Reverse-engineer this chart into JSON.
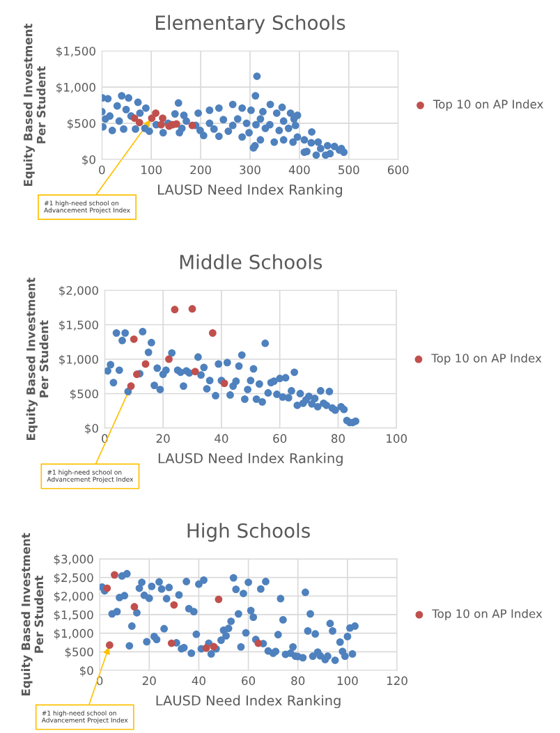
{
  "chart_data": [
    {
      "type": "scatter",
      "title": "Elementary Schools",
      "xlabel": "LAUSD Need Index Ranking",
      "ylabel": "Equity Based Investment Per Student",
      "xlim": [
        0,
        600
      ],
      "xticks": [
        0,
        100,
        200,
        300,
        400,
        500,
        600
      ],
      "ylim": [
        0,
        1500
      ],
      "yticks": [
        {
          "value": 0,
          "label": "$0"
        },
        {
          "value": 500,
          "label": "$500"
        },
        {
          "value": 1000,
          "label": "$1,000"
        },
        {
          "value": 1500,
          "label": "$1,500"
        }
      ],
      "grid": true,
      "legend": "right",
      "marker": "circle",
      "annotations": [
        {
          "text": "#1 high-need school on Advancement Project Index",
          "x": 101,
          "y": 572
        }
      ],
      "series": [
        {
          "color": "#4e81bd",
          "x": [
            314,
            311,
            341,
            365,
            155,
            425,
            310,
            307,
            1,
            12,
            40,
            54,
            73,
            89,
            2,
            21,
            44,
            68,
            0,
            16,
            31,
            49,
            35,
            59,
            7,
            77,
            87,
            148,
            166,
            195,
            218,
            237,
            265,
            284,
            302,
            326,
            354,
            382,
            396,
            368,
            389,
            96,
            124,
            157,
            206,
            237,
            284,
            321,
            349,
            368,
            387,
            110,
            134,
            171,
            190,
            218,
            246,
            265,
            275,
            293,
            312,
            321,
            331,
            340,
            359,
            378,
            392,
            162,
            199,
            227,
            256,
            298,
            396,
            410,
            424,
            438,
            415,
            443,
            457,
            471,
            481,
            490,
            485,
            434,
            462,
            410,
            453
          ],
          "values": [
            1150,
            880,
            760,
            720,
            780,
            380,
            190,
            160,
            850,
            840,
            880,
            850,
            790,
            710,
            450,
            400,
            420,
            420,
            660,
            600,
            740,
            690,
            530,
            600,
            560,
            640,
            430,
            630,
            610,
            640,
            680,
            710,
            760,
            710,
            680,
            660,
            640,
            640,
            610,
            530,
            560,
            390,
            370,
            370,
            330,
            320,
            310,
            270,
            240,
            270,
            240,
            480,
            500,
            530,
            470,
            500,
            550,
            470,
            560,
            500,
            480,
            560,
            430,
            480,
            400,
            430,
            470,
            430,
            400,
            420,
            390,
            370,
            310,
            270,
            230,
            240,
            110,
            150,
            190,
            180,
            130,
            100,
            150,
            60,
            80,
            100,
            60
          ]
        },
        {
          "name": "Top 10 on AP Index",
          "color": "#c0504d",
          "x": [
            66,
            76,
            101,
            109,
            123,
            120,
            136,
            143,
            151,
            183
          ],
          "values": [
            570,
            510,
            570,
            640,
            570,
            480,
            460,
            480,
            490,
            470
          ]
        }
      ]
    },
    {
      "type": "scatter",
      "title": "Middle Schools",
      "xlabel": "LAUSD Need Index Ranking",
      "ylabel": "Equity Based Investment Per Student",
      "xlim": [
        0,
        100
      ],
      "xticks": [
        0,
        20,
        40,
        60,
        80,
        100
      ],
      "ylim": [
        0,
        2000
      ],
      "yticks": [
        {
          "value": 0,
          "label": "$0"
        },
        {
          "value": 500,
          "label": "$500"
        },
        {
          "value": 1000,
          "label": "$1,000"
        },
        {
          "value": 1500,
          "label": "$1,500"
        },
        {
          "value": 2000,
          "label": "$2,000"
        }
      ],
      "grid": true,
      "legend": "right",
      "marker": "circle",
      "annotations": [
        {
          "text": "#1 high-need school on Advancement Project Index",
          "x": 9,
          "y": 610
        }
      ],
      "series": [
        {
          "color": "#4e81bd",
          "x": [
            4,
            7,
            6,
            13,
            16,
            15,
            2,
            1,
            5,
            3,
            12,
            18,
            17,
            19,
            20,
            21,
            23,
            25,
            26,
            27,
            28,
            29,
            32,
            33,
            34,
            36,
            35,
            38,
            39,
            40,
            42,
            43,
            44,
            45,
            46,
            47,
            48,
            49,
            50,
            51,
            52,
            53,
            54,
            55,
            56,
            57,
            58,
            59,
            60,
            61,
            62,
            63,
            64,
            65,
            66,
            67,
            68,
            69,
            70,
            71,
            72,
            73,
            74,
            75,
            76,
            77,
            78,
            79,
            81,
            82,
            83,
            84,
            85,
            86,
            8
          ],
          "values": [
            1380,
            1380,
            1270,
            1400,
            1240,
            1100,
            920,
            830,
            840,
            660,
            790,
            870,
            620,
            560,
            780,
            840,
            1090,
            840,
            810,
            610,
            830,
            800,
            1030,
            770,
            880,
            690,
            570,
            470,
            930,
            690,
            950,
            480,
            610,
            680,
            900,
            1060,
            420,
            560,
            690,
            860,
            420,
            640,
            380,
            1230,
            510,
            660,
            680,
            490,
            720,
            450,
            730,
            440,
            540,
            810,
            330,
            500,
            360,
            410,
            460,
            350,
            430,
            310,
            540,
            360,
            330,
            530,
            290,
            260,
            310,
            270,
            110,
            80,
            80,
            100,
            530
          ]
        },
        {
          "name": "Top 10 on AP Index",
          "color": "#c0504d",
          "x": [
            24,
            30,
            37,
            10,
            14,
            11,
            22,
            31,
            41,
            9
          ],
          "values": [
            1720,
            1730,
            1380,
            1290,
            930,
            780,
            1000,
            820,
            650,
            610
          ]
        }
      ]
    },
    {
      "type": "scatter",
      "title": "High Schools",
      "xlabel": "LAUSD Need Index Ranking",
      "ylabel": "Equity Based Investment Per Student",
      "xlim": [
        0,
        120
      ],
      "xticks": [
        0,
        20,
        40,
        60,
        80,
        100,
        120
      ],
      "ylim": [
        0,
        3000
      ],
      "yticks": [
        {
          "value": 0,
          "label": "$0"
        },
        {
          "value": 500,
          "label": "$500"
        },
        {
          "value": 1000,
          "label": "$1,000"
        },
        {
          "value": 1500,
          "label": "$1,500"
        },
        {
          "value": 2000,
          "label": "$2,000"
        },
        {
          "value": 2500,
          "label": "$2,500"
        },
        {
          "value": 3000,
          "label": "$3,000"
        }
      ],
      "grid": true,
      "legend": "right",
      "marker": "circle",
      "annotations": [
        {
          "text": "#1 high-need school on Advancement Project Index",
          "x": 4,
          "y": 680
        }
      ],
      "series": [
        {
          "color": "#4e81bd",
          "x": [
            1,
            2,
            5,
            7,
            8,
            10,
            9,
            11,
            12,
            13,
            15,
            16,
            17,
            18,
            19,
            20,
            21,
            22,
            23,
            24,
            25,
            26,
            27,
            28,
            31,
            32,
            33,
            34,
            35,
            36,
            37,
            38,
            39,
            41,
            40,
            42,
            44,
            45,
            47,
            49,
            50,
            51,
            52,
            53,
            54,
            55,
            56,
            57,
            58,
            59,
            60,
            61,
            62,
            63,
            65,
            66,
            67,
            68,
            70,
            71,
            72,
            73,
            74,
            75,
            77,
            78,
            79,
            80,
            82,
            83,
            84,
            85,
            86,
            87,
            88,
            89,
            91,
            92,
            93,
            94,
            95,
            97,
            98,
            99,
            100,
            101,
            102,
            103
          ],
          "values": [
            2240,
            2140,
            1520,
            1580,
            1960,
            2010,
            2540,
            2600,
            660,
            1190,
            1550,
            2210,
            2370,
            2020,
            770,
            1940,
            2260,
            910,
            830,
            2380,
            2190,
            1120,
            1930,
            2230,
            740,
            2030,
            580,
            610,
            2390,
            1660,
            460,
            1580,
            970,
            580,
            2320,
            2430,
            730,
            440,
            580,
            810,
            1080,
            930,
            1130,
            1320,
            2490,
            2180,
            1520,
            630,
            2070,
            1010,
            2370,
            1610,
            1430,
            830,
            2190,
            720,
            2390,
            520,
            460,
            510,
            960,
            1930,
            1360,
            430,
            460,
            630,
            380,
            370,
            340,
            2100,
            1060,
            1520,
            380,
            980,
            490,
            390,
            290,
            380,
            1260,
            1060,
            270,
            760,
            510,
            380,
            910,
            1140,
            440,
            1190
          ]
        },
        {
          "name": "Top 10 on AP Index",
          "color": "#c0504d",
          "x": [
            6,
            3,
            14,
            4,
            30,
            29,
            43,
            46,
            48,
            64
          ],
          "values": [
            2570,
            2210,
            1710,
            680,
            1760,
            730,
            600,
            640,
            1910,
            730
          ]
        }
      ]
    }
  ]
}
